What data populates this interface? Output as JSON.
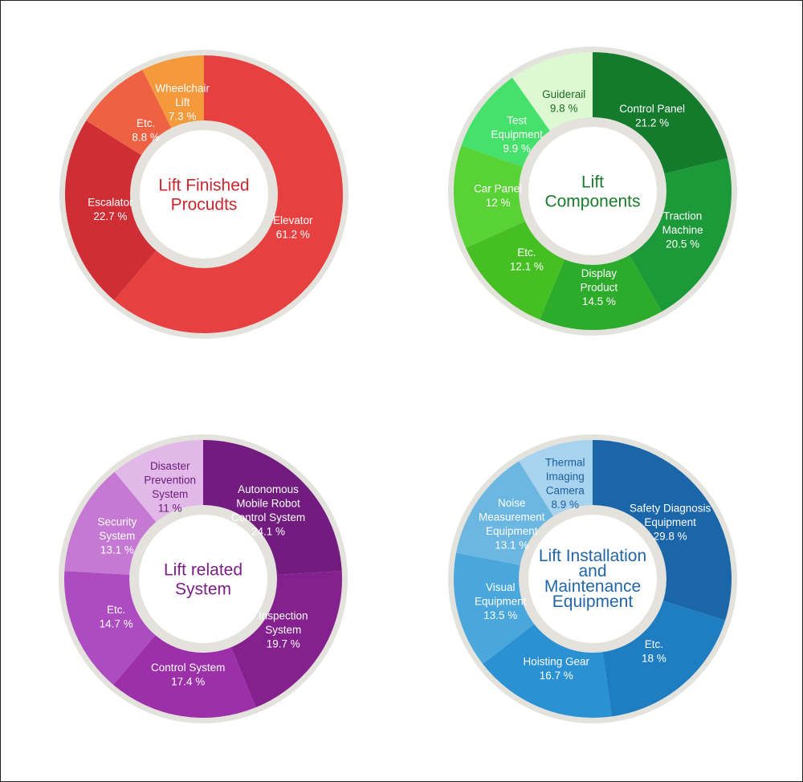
{
  "chart_data": [
    {
      "type": "pie",
      "title": "Lift Finished Procudts",
      "title_color": "#c8282e",
      "label_color": "#ffffff",
      "slices": [
        {
          "label": "Elevator",
          "value": 61.2,
          "value_text": "61.2 %",
          "color": "#e74040"
        },
        {
          "label": "Escalator",
          "value": 22.7,
          "value_text": "22.7 %",
          "color": "#cf2e35"
        },
        {
          "label": "Etc.",
          "value": 8.8,
          "value_text": "8.8 %",
          "color": "#ee6243"
        },
        {
          "label": "Wheelchair Lift",
          "value": 7.3,
          "value_text": "7.3 %",
          "color": "#f59a3c"
        }
      ]
    },
    {
      "type": "pie",
      "title": "Lift Components",
      "title_color": "#1a7a2a",
      "label_color": "#ffffff",
      "slices": [
        {
          "label": "Control Panel",
          "value": 21.2,
          "value_text": "21.2 %",
          "color": "#147a2c"
        },
        {
          "label": "Traction Machine",
          "value": 20.5,
          "value_text": "20.5 %",
          "color": "#1c9a39"
        },
        {
          "label": "Display Product",
          "value": 14.5,
          "value_text": "14.5 %",
          "color": "#2dab2a"
        },
        {
          "label": "Etc.",
          "value": 12.1,
          "value_text": "12.1 %",
          "color": "#46bf22"
        },
        {
          "label": "Car Panel",
          "value": 12,
          "value_text": "12 %",
          "color": "#59d236"
        },
        {
          "label": "Test Equipment",
          "value": 9.9,
          "value_text": "9.9 %",
          "color": "#45e16b"
        },
        {
          "label": "Guiderail",
          "value": 9.8,
          "value_text": "9.8 %",
          "color": "#ddf9d3",
          "text_color": "#1f6a22"
        }
      ]
    },
    {
      "type": "pie",
      "title": "Lift related System",
      "title_color": "#7b1e86",
      "label_color": "#ffffff",
      "slices": [
        {
          "label": "Autonomous Mobile Robot Control System",
          "value": 24.1,
          "value_text": "24.1 %",
          "color": "#721c80"
        },
        {
          "label": "Inspection System",
          "value": 19.7,
          "value_text": "19.7 %",
          "color": "#84218f"
        },
        {
          "label": "Control System",
          "value": 17.4,
          "value_text": "17.4 %",
          "color": "#9b30a8"
        },
        {
          "label": "Etc.",
          "value": 14.7,
          "value_text": "14.7 %",
          "color": "#ad4cc1"
        },
        {
          "label": "Security System",
          "value": 13.1,
          "value_text": "13.1 %",
          "color": "#c679d3"
        },
        {
          "label": "Disaster Prevention System",
          "value": 11,
          "value_text": "11 %",
          "color": "#e2b8e9",
          "text_color": "#6a1c76"
        }
      ]
    },
    {
      "type": "pie",
      "title": "Lift Installation and Maintenance Equipment",
      "title_color": "#2266a8",
      "label_color": "#ffffff",
      "slices": [
        {
          "label": "Safety Diagnosis Equipment",
          "value": 29.8,
          "value_text": "29.8 %",
          "color": "#1a66a8"
        },
        {
          "label": "Etc.",
          "value": 18,
          "value_text": "18 %",
          "color": "#1f7dc1"
        },
        {
          "label": "Hoisting Gear",
          "value": 16.7,
          "value_text": "16.7 %",
          "color": "#2a91d2"
        },
        {
          "label": "Visual Equipment",
          "value": 13.5,
          "value_text": "13.5 %",
          "color": "#4aa7dc"
        },
        {
          "label": "Noise Measurement Equipment",
          "value": 13.1,
          "value_text": "13.1 %",
          "color": "#6bb7e2"
        },
        {
          "label": "Thermal Imaging Camera",
          "value": 8.9,
          "value_text": "8.9 %",
          "color": "#a8d3ee",
          "text_color": "#1d5f9c"
        }
      ]
    }
  ]
}
